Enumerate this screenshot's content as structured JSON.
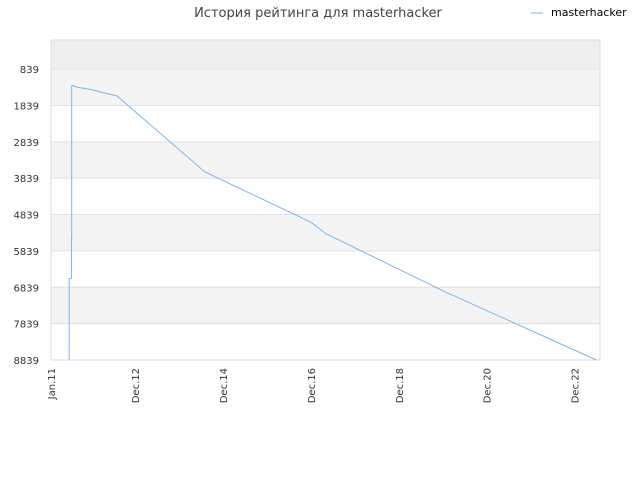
{
  "chart_data": {
    "type": "line",
    "title": "История рейтинга для masterhacker",
    "xlabel": "",
    "ylabel": "",
    "y_inverted": true,
    "ylim": [
      8839,
      38.9
    ],
    "y_ticks": [
      839,
      1839,
      2839,
      3839,
      4839,
      5839,
      6839,
      7839,
      8839
    ],
    "y_tick_labels": [
      "839",
      "1839",
      "2839",
      "3839",
      "4839",
      "5839",
      "6839",
      "7839",
      "8839"
    ],
    "x_range": [
      "2011-01-01",
      "2023-07-01"
    ],
    "x_ticks": [
      {
        "date": "2011-01-01",
        "label": "Jan.11"
      },
      {
        "date": "2012-12-01",
        "label": "Dec.12"
      },
      {
        "date": "2014-12-01",
        "label": "Dec.14"
      },
      {
        "date": "2016-12-01",
        "label": "Dec.16"
      },
      {
        "date": "2018-12-01",
        "label": "Dec.18"
      },
      {
        "date": "2020-12-01",
        "label": "Dec.20"
      },
      {
        "date": "2022-12-01",
        "label": "Dec.22"
      }
    ],
    "grid": true,
    "alternating_bands": true,
    "legend_position": "top-right",
    "series": [
      {
        "name": "masterhacker",
        "color": "#7cb5ec",
        "points": [
          {
            "x": "2011-06-01",
            "y": 8839
          },
          {
            "x": "2011-06-01",
            "y": 6600
          },
          {
            "x": "2011-06-20",
            "y": 6600
          },
          {
            "x": "2011-06-20",
            "y": 5490
          },
          {
            "x": "2011-06-22",
            "y": 5490
          },
          {
            "x": "2011-06-22",
            "y": 1300
          },
          {
            "x": "2011-07-05",
            "y": 1290
          },
          {
            "x": "2011-07-20",
            "y": 1320
          },
          {
            "x": "2011-09-01",
            "y": 1350
          },
          {
            "x": "2011-12-01",
            "y": 1400
          },
          {
            "x": "2012-03-01",
            "y": 1480
          },
          {
            "x": "2012-07-01",
            "y": 1570
          },
          {
            "x": "2014-07-01",
            "y": 3660
          },
          {
            "x": "2016-12-01",
            "y": 5050
          },
          {
            "x": "2017-04-01",
            "y": 5360
          },
          {
            "x": "2020-01-01",
            "y": 6980
          },
          {
            "x": "2023-06-01",
            "y": 8839
          }
        ]
      }
    ]
  }
}
